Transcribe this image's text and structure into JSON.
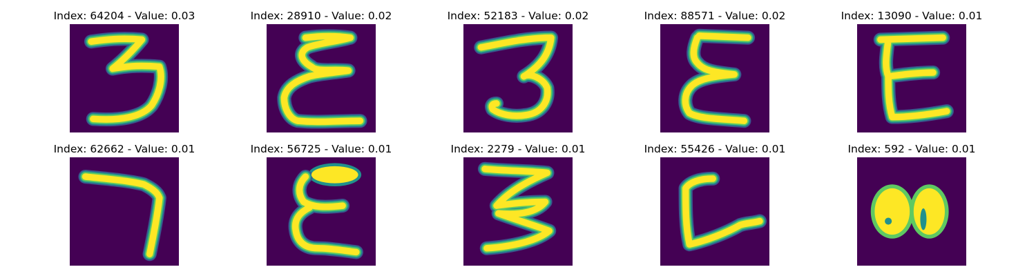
{
  "colors": {
    "background": "#440154",
    "stroke_core": "#fde725",
    "stroke_mid": "#5ec962",
    "stroke_edge": "#21918c",
    "stroke_fade": "#3b528b"
  },
  "panels": [
    {
      "title": "Index: 64204 - Value: 0.03",
      "index": 64204,
      "value": 0.03,
      "glyph": "3"
    },
    {
      "title": "Index: 28910 - Value: 0.02",
      "index": 28910,
      "value": 0.02,
      "glyph": "epsilon"
    },
    {
      "title": "Index: 52183 - Value: 0.02",
      "index": 52183,
      "value": 0.02,
      "glyph": "3"
    },
    {
      "title": "Index: 88571 - Value: 0.02",
      "index": 88571,
      "value": 0.02,
      "glyph": "epsilon"
    },
    {
      "title": "Index: 13090 - Value: 0.01",
      "index": 13090,
      "value": 0.01,
      "glyph": "E"
    },
    {
      "title": "Index: 62662 - Value: 0.01",
      "index": 62662,
      "value": 0.01,
      "glyph": "7"
    },
    {
      "title": "Index: 56725 - Value: 0.01",
      "index": 56725,
      "value": 0.01,
      "glyph": "epsilon"
    },
    {
      "title": "Index: 2279 - Value: 0.01",
      "index": 2279,
      "value": 0.01,
      "glyph": "3"
    },
    {
      "title": "Index: 55426 - Value: 0.01",
      "index": 55426,
      "value": 0.01,
      "glyph": "L"
    },
    {
      "title": "Index: 592 - Value: 0.01",
      "index": 592,
      "value": 0.01,
      "glyph": "blob"
    }
  ]
}
